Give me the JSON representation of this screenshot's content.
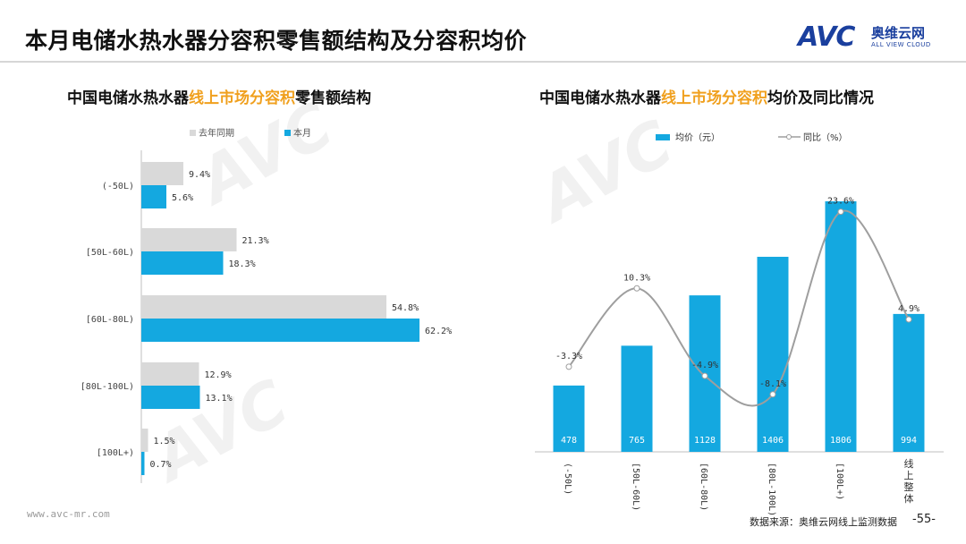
{
  "header": {
    "title": "本月电储水热水器分容积零售额结构及分容积均价",
    "logo_avc": "AVC",
    "logo_cn": "奥维云网",
    "logo_en": "ALL VIEW CLOUD"
  },
  "left_chart": {
    "title_pre": "中国电储水热水器",
    "title_hl": "线上市场分容积",
    "title_post": "零售额结构"
  },
  "right_chart": {
    "title_pre": "中国电储水热水器",
    "title_hl": "线上市场分容积",
    "title_post": "均价及同比情况"
  },
  "footer": {
    "url": "www.avc-mr.com",
    "source": "数据来源：奥维云网线上监测数据",
    "page": "-55-"
  },
  "colors": {
    "current": "#14a8e0",
    "prior": "#d9d9d9",
    "line": "#9e9e9e",
    "highlight": "#f0a01e",
    "logo": "#1a3f9e"
  },
  "chart_data": [
    {
      "type": "bar",
      "orientation": "horizontal",
      "categories": [
        "(-50L)",
        "[50L-60L)",
        "[60L-80L)",
        "[80L-100L)",
        "[100L+)"
      ],
      "series": [
        {
          "name": "去年同期",
          "values": [
            9.4,
            21.3,
            54.8,
            12.9,
            1.5
          ],
          "labels": [
            "9.4%",
            "21.3%",
            "54.8%",
            "12.9%",
            "1.5%"
          ]
        },
        {
          "name": "本月",
          "values": [
            5.6,
            18.3,
            62.2,
            13.1,
            0.7
          ],
          "labels": [
            "5.6%",
            "18.3%",
            "62.2%",
            "13.1%",
            "0.7%"
          ]
        }
      ],
      "legend": "top",
      "grid": false
    },
    {
      "type": "bar",
      "categories": [
        "(-50L)",
        "[50L-60L)",
        "[60L-80L)",
        "[80L-100L)",
        "[100L+)",
        "线上整体"
      ],
      "series": [
        {
          "name": "均价（元）",
          "type": "bar",
          "values": [
            478,
            765,
            1128,
            1406,
            1806,
            994
          ],
          "labels": [
            "478",
            "765",
            "1128",
            "1406",
            "1806",
            "994"
          ]
        },
        {
          "name": "同比（%）",
          "type": "line",
          "smooth": true,
          "values": [
            -3.3,
            10.3,
            -4.9,
            -8.1,
            23.6,
            4.9
          ],
          "labels": [
            "-3.3%",
            "10.3%",
            "-4.9%",
            "-8.1%",
            "23.6%",
            "4.9%"
          ]
        }
      ],
      "legend": "top",
      "grid": false
    }
  ]
}
